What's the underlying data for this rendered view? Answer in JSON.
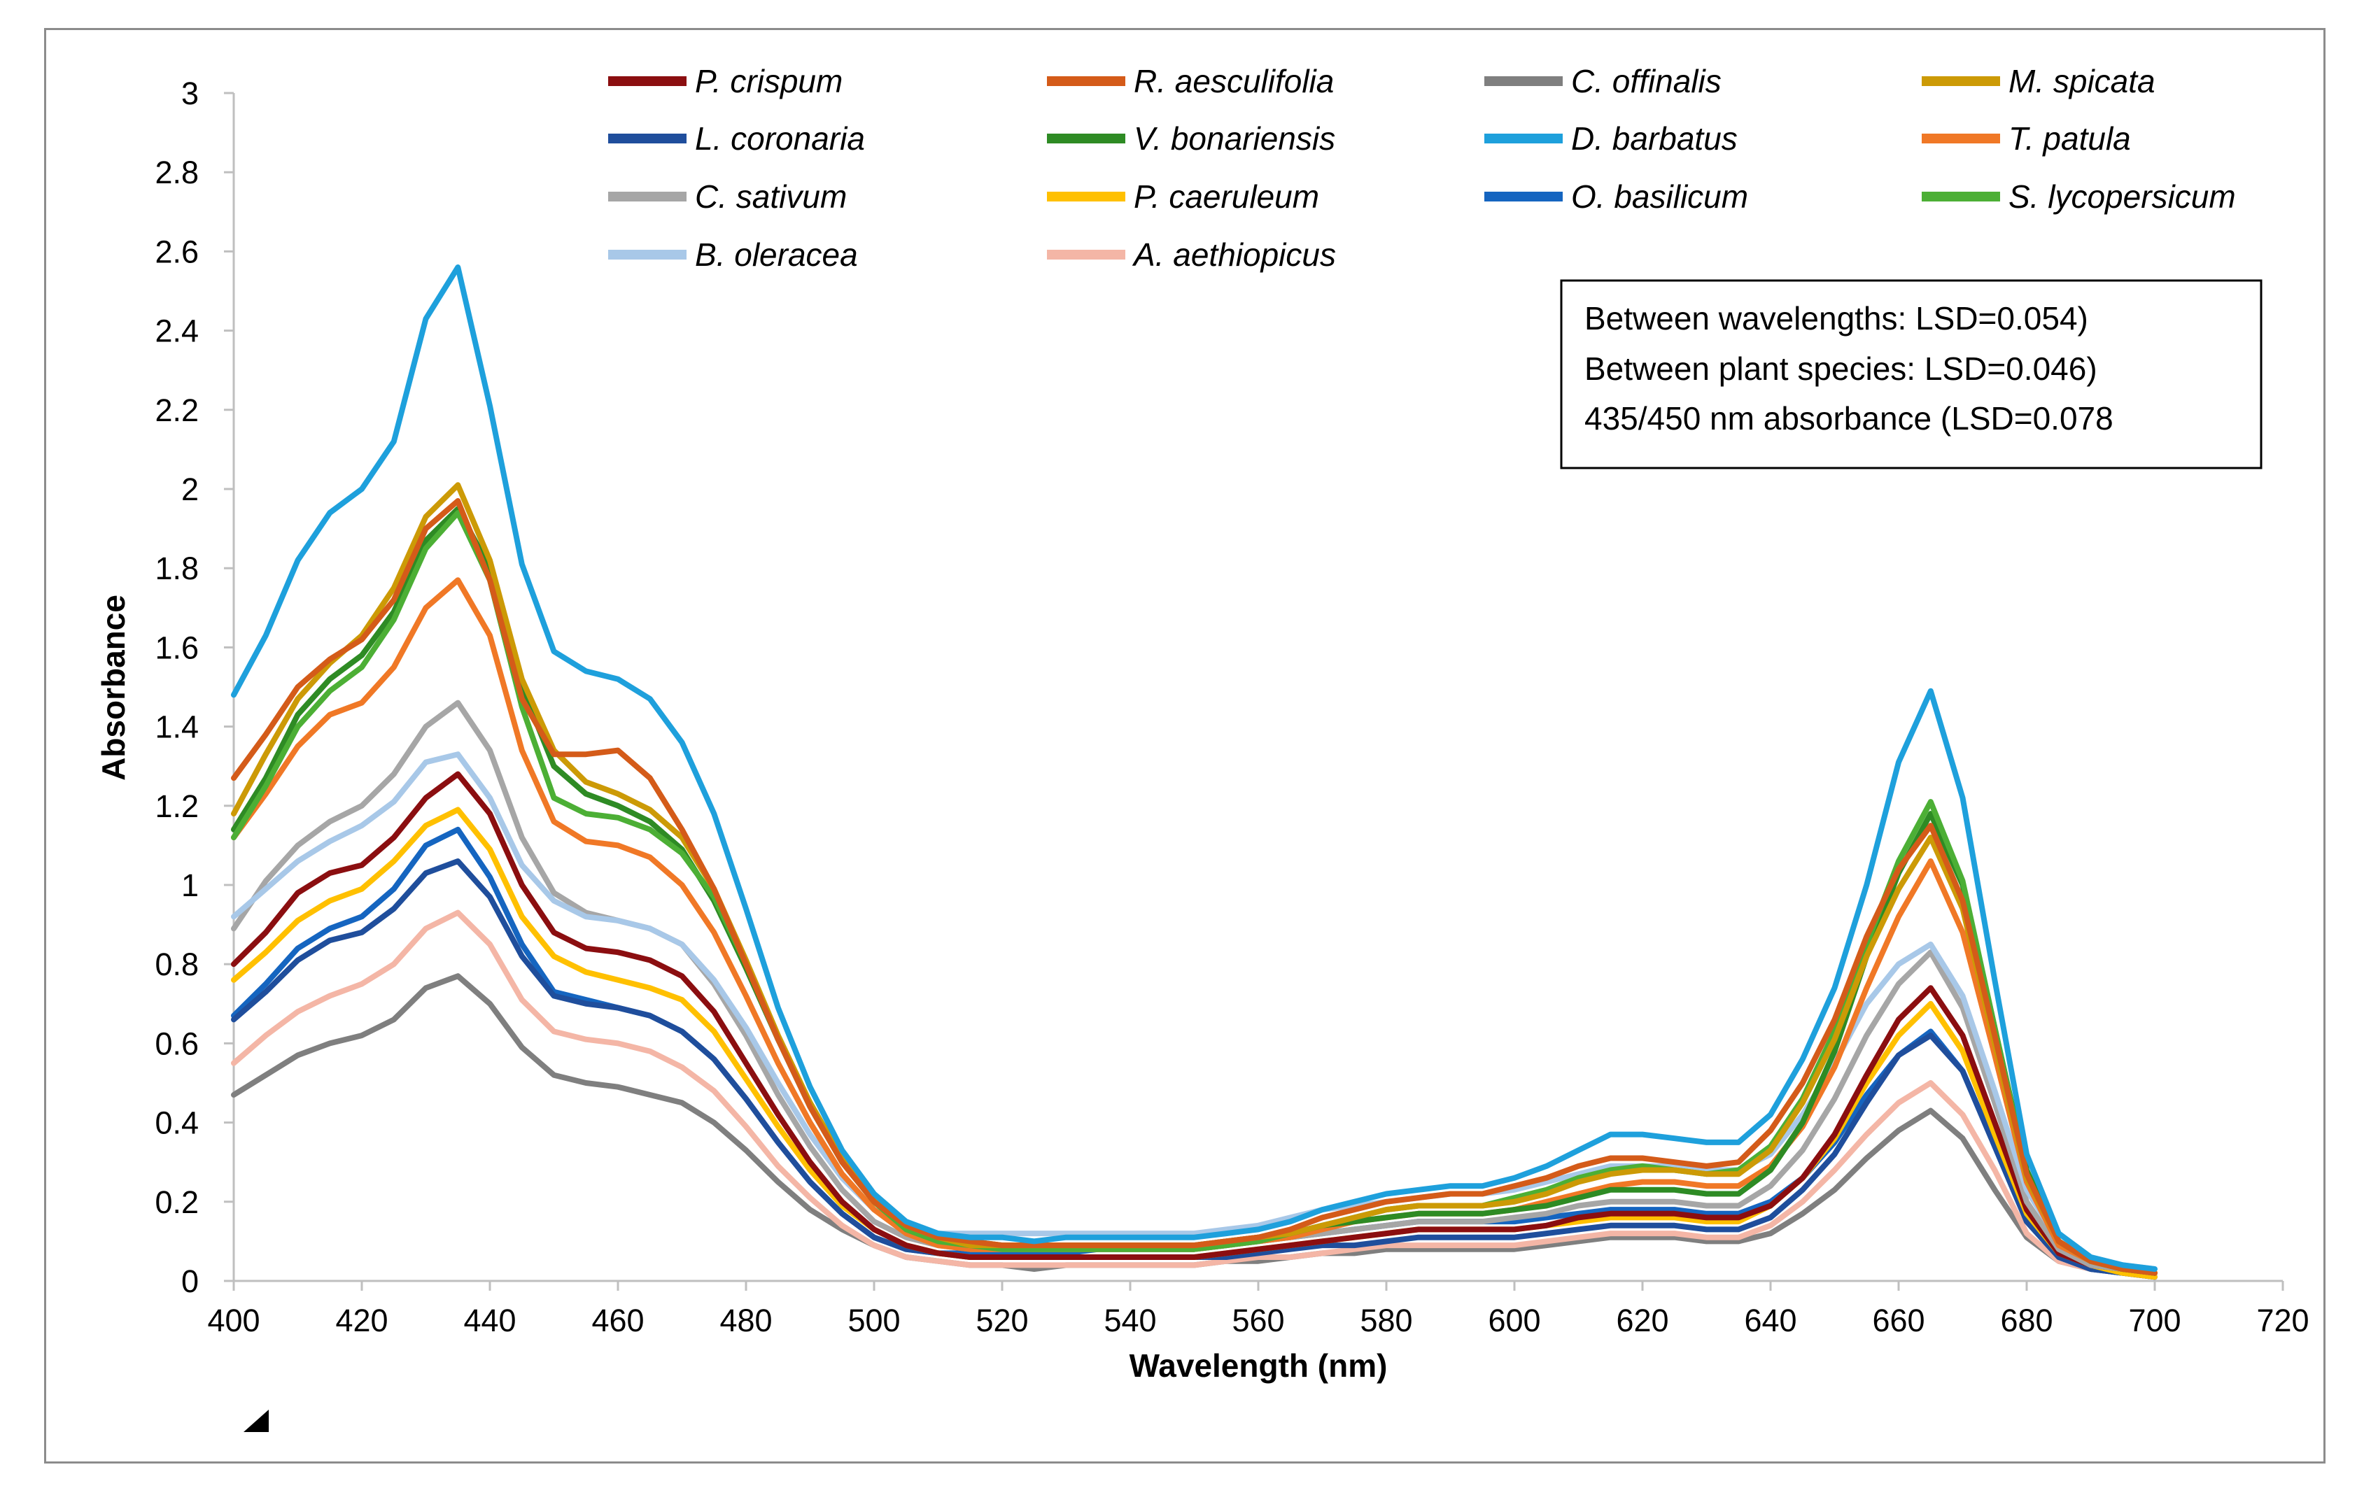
{
  "chart_data": {
    "type": "line",
    "xlabel": "Wavelength (nm)",
    "ylabel": "Absorbance",
    "xlim": [
      400,
      720
    ],
    "ylim": [
      0,
      3
    ],
    "x_ticks": [
      "400",
      "420",
      "440",
      "460",
      "480",
      "500",
      "520",
      "540",
      "560",
      "580",
      "600",
      "620",
      "640",
      "660",
      "680",
      "700",
      "720"
    ],
    "y_ticks": [
      "0",
      "0.2",
      "0.4",
      "0.6",
      "0.8",
      "1",
      "1.2",
      "1.4",
      "1.6",
      "1.8",
      "2",
      "2.2",
      "2.4",
      "2.6",
      "2.8",
      "3"
    ],
    "grid": false,
    "legend_position": "top",
    "annotation_box": [
      "Between wavelengths: LSD=0.054)",
      "Between plant species: LSD=0.046)",
      "435/450 nm absorbance (LSD=0.078"
    ],
    "x": [
      400,
      405,
      410,
      415,
      420,
      425,
      430,
      435,
      440,
      445,
      450,
      455,
      460,
      465,
      470,
      475,
      480,
      485,
      490,
      495,
      500,
      505,
      510,
      515,
      520,
      525,
      530,
      535,
      540,
      545,
      550,
      555,
      560,
      565,
      570,
      575,
      580,
      585,
      590,
      595,
      600,
      605,
      610,
      615,
      620,
      625,
      630,
      635,
      640,
      645,
      650,
      655,
      660,
      665,
      670,
      675,
      680,
      685,
      690,
      695,
      700
    ],
    "series": [
      {
        "name": "P. crispum",
        "color": "#8b0e10",
        "values": [
          0.8,
          0.88,
          0.98,
          1.03,
          1.05,
          1.12,
          1.22,
          1.28,
          1.18,
          1.0,
          0.88,
          0.84,
          0.83,
          0.81,
          0.77,
          0.68,
          0.55,
          0.42,
          0.3,
          0.2,
          0.13,
          0.09,
          0.07,
          0.06,
          0.06,
          0.06,
          0.06,
          0.06,
          0.06,
          0.06,
          0.06,
          0.07,
          0.08,
          0.09,
          0.1,
          0.11,
          0.12,
          0.13,
          0.13,
          0.13,
          0.13,
          0.14,
          0.16,
          0.17,
          0.17,
          0.17,
          0.16,
          0.16,
          0.19,
          0.26,
          0.37,
          0.52,
          0.66,
          0.74,
          0.62,
          0.4,
          0.18,
          0.07,
          0.04,
          0.03,
          0.02
        ]
      },
      {
        "name": "R. aesculifolia",
        "color": "#d45b19",
        "values": [
          1.27,
          1.38,
          1.5,
          1.57,
          1.62,
          1.72,
          1.9,
          1.97,
          1.77,
          1.47,
          1.33,
          1.33,
          1.34,
          1.27,
          1.14,
          0.99,
          0.8,
          0.61,
          0.44,
          0.3,
          0.2,
          0.14,
          0.11,
          0.1,
          0.09,
          0.09,
          0.09,
          0.09,
          0.09,
          0.09,
          0.09,
          0.1,
          0.11,
          0.13,
          0.16,
          0.18,
          0.2,
          0.21,
          0.22,
          0.22,
          0.24,
          0.26,
          0.29,
          0.31,
          0.31,
          0.3,
          0.29,
          0.3,
          0.38,
          0.5,
          0.66,
          0.87,
          1.04,
          1.15,
          0.96,
          0.62,
          0.27,
          0.1,
          0.05,
          0.03,
          0.02
        ]
      },
      {
        "name": "C. offinalis",
        "color": "#7f7f7f",
        "values": [
          0.47,
          0.52,
          0.57,
          0.6,
          0.62,
          0.66,
          0.74,
          0.77,
          0.7,
          0.59,
          0.52,
          0.5,
          0.49,
          0.47,
          0.45,
          0.4,
          0.33,
          0.25,
          0.18,
          0.13,
          0.09,
          0.06,
          0.05,
          0.04,
          0.04,
          0.03,
          0.04,
          0.04,
          0.04,
          0.04,
          0.04,
          0.05,
          0.05,
          0.06,
          0.07,
          0.07,
          0.08,
          0.08,
          0.08,
          0.08,
          0.08,
          0.09,
          0.1,
          0.11,
          0.11,
          0.11,
          0.1,
          0.1,
          0.12,
          0.17,
          0.23,
          0.31,
          0.38,
          0.43,
          0.36,
          0.23,
          0.11,
          0.05,
          0.03,
          0.02,
          0.01
        ]
      },
      {
        "name": "M. spicata",
        "color": "#cc9a06",
        "values": [
          1.18,
          1.33,
          1.47,
          1.56,
          1.63,
          1.75,
          1.93,
          2.01,
          1.82,
          1.52,
          1.34,
          1.26,
          1.23,
          1.19,
          1.12,
          0.99,
          0.81,
          0.62,
          0.45,
          0.31,
          0.21,
          0.14,
          0.11,
          0.09,
          0.09,
          0.09,
          0.09,
          0.09,
          0.09,
          0.09,
          0.09,
          0.1,
          0.11,
          0.12,
          0.14,
          0.16,
          0.18,
          0.19,
          0.19,
          0.19,
          0.2,
          0.22,
          0.25,
          0.27,
          0.28,
          0.28,
          0.27,
          0.27,
          0.33,
          0.45,
          0.61,
          0.82,
          0.99,
          1.12,
          0.94,
          0.6,
          0.26,
          0.1,
          0.05,
          0.03,
          0.02
        ]
      },
      {
        "name": "L. coronaria",
        "color": "#1f4e9c",
        "values": [
          0.66,
          0.73,
          0.81,
          0.86,
          0.88,
          0.94,
          1.03,
          1.06,
          0.97,
          0.82,
          0.72,
          0.7,
          0.69,
          0.67,
          0.63,
          0.56,
          0.46,
          0.35,
          0.25,
          0.17,
          0.11,
          0.08,
          0.07,
          0.06,
          0.06,
          0.06,
          0.06,
          0.06,
          0.06,
          0.06,
          0.06,
          0.06,
          0.07,
          0.08,
          0.09,
          0.09,
          0.1,
          0.11,
          0.11,
          0.11,
          0.11,
          0.12,
          0.13,
          0.14,
          0.14,
          0.14,
          0.13,
          0.13,
          0.16,
          0.23,
          0.32,
          0.45,
          0.57,
          0.62,
          0.53,
          0.34,
          0.15,
          0.06,
          0.03,
          0.02,
          0.01
        ]
      },
      {
        "name": "V. bonariensis",
        "color": "#2e8b24",
        "values": [
          1.14,
          1.27,
          1.43,
          1.52,
          1.58,
          1.69,
          1.87,
          1.95,
          1.8,
          1.5,
          1.3,
          1.23,
          1.2,
          1.16,
          1.09,
          0.96,
          0.79,
          0.61,
          0.45,
          0.31,
          0.21,
          0.14,
          0.11,
          0.1,
          0.09,
          0.09,
          0.09,
          0.09,
          0.09,
          0.09,
          0.09,
          0.1,
          0.11,
          0.12,
          0.14,
          0.15,
          0.16,
          0.17,
          0.17,
          0.17,
          0.18,
          0.19,
          0.21,
          0.23,
          0.23,
          0.23,
          0.22,
          0.22,
          0.28,
          0.4,
          0.58,
          0.82,
          1.03,
          1.18,
          1.0,
          0.64,
          0.28,
          0.1,
          0.05,
          0.03,
          0.02
        ]
      },
      {
        "name": "D. barbatus",
        "color": "#1ea0dc",
        "values": [
          1.48,
          1.63,
          1.82,
          1.94,
          2.0,
          2.12,
          2.43,
          2.56,
          2.21,
          1.81,
          1.59,
          1.54,
          1.52,
          1.47,
          1.36,
          1.18,
          0.94,
          0.69,
          0.49,
          0.33,
          0.22,
          0.15,
          0.12,
          0.11,
          0.11,
          0.1,
          0.11,
          0.11,
          0.11,
          0.11,
          0.11,
          0.12,
          0.13,
          0.15,
          0.18,
          0.2,
          0.22,
          0.23,
          0.24,
          0.24,
          0.26,
          0.29,
          0.33,
          0.37,
          0.37,
          0.36,
          0.35,
          0.35,
          0.42,
          0.56,
          0.74,
          1.0,
          1.31,
          1.49,
          1.22,
          0.76,
          0.32,
          0.12,
          0.06,
          0.04,
          0.03
        ]
      },
      {
        "name": "T. patula",
        "color": "#f07826",
        "values": [
          1.12,
          1.23,
          1.35,
          1.43,
          1.46,
          1.55,
          1.7,
          1.77,
          1.63,
          1.34,
          1.16,
          1.11,
          1.1,
          1.07,
          1.0,
          0.88,
          0.72,
          0.55,
          0.4,
          0.27,
          0.18,
          0.12,
          0.09,
          0.08,
          0.08,
          0.08,
          0.08,
          0.08,
          0.08,
          0.08,
          0.08,
          0.09,
          0.1,
          0.11,
          0.13,
          0.15,
          0.16,
          0.17,
          0.17,
          0.17,
          0.18,
          0.2,
          0.22,
          0.24,
          0.25,
          0.25,
          0.24,
          0.24,
          0.29,
          0.39,
          0.54,
          0.74,
          0.92,
          1.06,
          0.88,
          0.57,
          0.25,
          0.09,
          0.05,
          0.03,
          0.02
        ]
      },
      {
        "name": "C. sativum",
        "color": "#a6a6a6",
        "values": [
          0.89,
          1.01,
          1.1,
          1.16,
          1.2,
          1.28,
          1.4,
          1.46,
          1.34,
          1.12,
          0.98,
          0.93,
          0.91,
          0.89,
          0.85,
          0.75,
          0.62,
          0.47,
          0.34,
          0.23,
          0.15,
          0.11,
          0.09,
          0.08,
          0.08,
          0.08,
          0.08,
          0.08,
          0.08,
          0.08,
          0.08,
          0.09,
          0.1,
          0.11,
          0.12,
          0.13,
          0.14,
          0.15,
          0.15,
          0.15,
          0.16,
          0.17,
          0.19,
          0.2,
          0.2,
          0.2,
          0.19,
          0.19,
          0.24,
          0.33,
          0.46,
          0.62,
          0.75,
          0.83,
          0.69,
          0.45,
          0.2,
          0.08,
          0.04,
          0.03,
          0.02
        ]
      },
      {
        "name": "P. caeruleum",
        "color": "#ffc000",
        "values": [
          0.76,
          0.83,
          0.91,
          0.96,
          0.99,
          1.06,
          1.15,
          1.19,
          1.09,
          0.92,
          0.82,
          0.78,
          0.76,
          0.74,
          0.71,
          0.63,
          0.51,
          0.39,
          0.28,
          0.19,
          0.13,
          0.09,
          0.07,
          0.06,
          0.06,
          0.06,
          0.06,
          0.06,
          0.06,
          0.06,
          0.06,
          0.07,
          0.08,
          0.09,
          0.1,
          0.11,
          0.12,
          0.13,
          0.13,
          0.13,
          0.13,
          0.14,
          0.15,
          0.16,
          0.16,
          0.16,
          0.15,
          0.15,
          0.19,
          0.26,
          0.36,
          0.5,
          0.62,
          0.7,
          0.58,
          0.37,
          0.17,
          0.07,
          0.04,
          0.02,
          0.01
        ]
      },
      {
        "name": "O. basilicum",
        "color": "#1565c0",
        "values": [
          0.67,
          0.75,
          0.84,
          0.89,
          0.92,
          0.99,
          1.1,
          1.14,
          1.02,
          0.85,
          0.73,
          0.71,
          0.69,
          0.67,
          0.63,
          0.56,
          0.46,
          0.35,
          0.25,
          0.17,
          0.11,
          0.08,
          0.07,
          0.07,
          0.07,
          0.07,
          0.07,
          0.08,
          0.08,
          0.08,
          0.08,
          0.09,
          0.1,
          0.11,
          0.12,
          0.13,
          0.14,
          0.15,
          0.15,
          0.15,
          0.15,
          0.16,
          0.17,
          0.18,
          0.18,
          0.18,
          0.17,
          0.17,
          0.2,
          0.26,
          0.35,
          0.47,
          0.57,
          0.63,
          0.53,
          0.34,
          0.15,
          0.06,
          0.03,
          0.02,
          0.01
        ]
      },
      {
        "name": "S. lycopersicum",
        "color": "#4caf35",
        "values": [
          1.12,
          1.25,
          1.4,
          1.49,
          1.55,
          1.67,
          1.85,
          1.94,
          1.77,
          1.45,
          1.22,
          1.18,
          1.17,
          1.14,
          1.08,
          0.97,
          0.8,
          0.61,
          0.44,
          0.3,
          0.2,
          0.13,
          0.1,
          0.09,
          0.08,
          0.08,
          0.08,
          0.08,
          0.08,
          0.08,
          0.08,
          0.09,
          0.1,
          0.12,
          0.14,
          0.16,
          0.18,
          0.19,
          0.19,
          0.19,
          0.21,
          0.23,
          0.26,
          0.28,
          0.29,
          0.28,
          0.27,
          0.28,
          0.34,
          0.46,
          0.63,
          0.85,
          1.06,
          1.21,
          1.01,
          0.64,
          0.27,
          0.1,
          0.05,
          0.03,
          0.02
        ]
      },
      {
        "name": "B. oleracea",
        "color": "#a8c8e8",
        "values": [
          0.92,
          0.99,
          1.06,
          1.11,
          1.15,
          1.21,
          1.31,
          1.33,
          1.22,
          1.05,
          0.96,
          0.92,
          0.91,
          0.89,
          0.85,
          0.76,
          0.64,
          0.5,
          0.37,
          0.26,
          0.18,
          0.14,
          0.12,
          0.12,
          0.12,
          0.12,
          0.12,
          0.12,
          0.12,
          0.12,
          0.12,
          0.13,
          0.14,
          0.16,
          0.18,
          0.19,
          0.2,
          0.21,
          0.22,
          0.22,
          0.23,
          0.25,
          0.27,
          0.29,
          0.29,
          0.29,
          0.28,
          0.28,
          0.32,
          0.42,
          0.55,
          0.7,
          0.8,
          0.85,
          0.72,
          0.48,
          0.23,
          0.1,
          0.06,
          0.04,
          0.03
        ]
      },
      {
        "name": "A. aethiopicus",
        "color": "#f4b6a6",
        "values": [
          0.55,
          0.62,
          0.68,
          0.72,
          0.75,
          0.8,
          0.89,
          0.93,
          0.85,
          0.71,
          0.63,
          0.61,
          0.6,
          0.58,
          0.54,
          0.48,
          0.39,
          0.29,
          0.21,
          0.14,
          0.09,
          0.06,
          0.05,
          0.04,
          0.04,
          0.04,
          0.04,
          0.04,
          0.04,
          0.04,
          0.04,
          0.05,
          0.06,
          0.06,
          0.07,
          0.08,
          0.09,
          0.09,
          0.09,
          0.09,
          0.09,
          0.1,
          0.11,
          0.12,
          0.12,
          0.12,
          0.11,
          0.11,
          0.14,
          0.2,
          0.28,
          0.37,
          0.45,
          0.5,
          0.42,
          0.28,
          0.12,
          0.05,
          0.03,
          0.02,
          0.01
        ]
      }
    ]
  }
}
